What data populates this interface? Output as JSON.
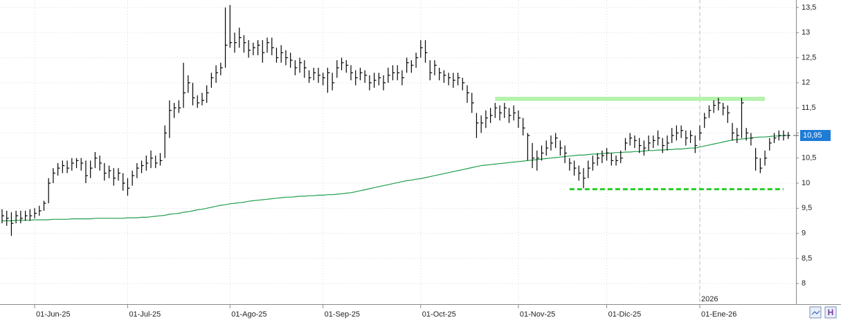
{
  "chart_data": {
    "type": "ohlc",
    "categories": [
      null,
      null,
      null,
      null,
      null,
      null,
      null,
      "01-Jun-25",
      null,
      null,
      null,
      null,
      null,
      null,
      null,
      null,
      null,
      null,
      null,
      null,
      null,
      null,
      null,
      null,
      null,
      null,
      null,
      "01-Jul-25",
      null,
      null,
      null,
      null,
      null,
      null,
      null,
      null,
      null,
      null,
      null,
      null,
      null,
      null,
      null,
      null,
      null,
      null,
      null,
      null,
      null,
      "01-Ago-25",
      null,
      null,
      null,
      null,
      null,
      null,
      null,
      null,
      null,
      null,
      null,
      null,
      null,
      null,
      null,
      null,
      null,
      null,
      null,
      "01-Sep-25",
      null,
      null,
      null,
      null,
      null,
      null,
      null,
      null,
      null,
      null,
      null,
      null,
      null,
      null,
      null,
      null,
      null,
      null,
      null,
      null,
      "01-Oct-25",
      null,
      null,
      null,
      null,
      null,
      null,
      null,
      null,
      null,
      null,
      null,
      null,
      null,
      null,
      null,
      null,
      null,
      null,
      null,
      null,
      "01-Nov-25",
      null,
      null,
      null,
      null,
      null,
      null,
      null,
      null,
      null,
      null,
      null,
      null,
      null,
      null,
      null,
      null,
      null,
      null,
      "01-Dic-25",
      null,
      null,
      null,
      null,
      null,
      null,
      null,
      null,
      null,
      null,
      null,
      null,
      null,
      null,
      null,
      null,
      null,
      null,
      null,
      "01-Ene-26",
      null,
      null,
      null,
      null,
      null,
      null,
      null,
      null,
      null,
      null,
      null,
      null,
      null,
      null,
      null,
      null,
      null,
      null,
      null
    ],
    "high": [
      9.48,
      9.45,
      9.42,
      9.45,
      9.45,
      9.45,
      9.48,
      9.5,
      9.55,
      9.65,
      10.1,
      10.3,
      10.4,
      10.45,
      10.45,
      10.5,
      10.5,
      10.5,
      10.45,
      10.45,
      10.62,
      10.55,
      10.4,
      10.35,
      10.3,
      10.3,
      10.2,
      10.1,
      10.25,
      10.4,
      10.45,
      10.55,
      10.65,
      10.55,
      10.6,
      11.15,
      11.65,
      11.6,
      11.65,
      12.4,
      12.15,
      12.0,
      11.75,
      11.8,
      11.95,
      12.2,
      12.35,
      12.4,
      13.5,
      13.55,
      13.0,
      13.1,
      12.95,
      12.85,
      12.8,
      12.85,
      12.85,
      12.9,
      12.9,
      12.7,
      12.75,
      12.65,
      12.6,
      12.45,
      12.5,
      12.45,
      12.25,
      12.3,
      12.3,
      12.2,
      12.3,
      12.2,
      12.45,
      12.5,
      12.45,
      12.35,
      12.25,
      12.3,
      12.25,
      12.15,
      12.2,
      12.2,
      12.15,
      12.3,
      12.35,
      12.35,
      12.25,
      12.5,
      12.45,
      12.6,
      12.85,
      12.85,
      12.45,
      12.45,
      12.3,
      12.25,
      12.2,
      12.2,
      12.2,
      12.1,
      11.95,
      11.8,
      11.4,
      11.35,
      11.45,
      11.5,
      11.6,
      11.55,
      11.6,
      11.5,
      11.55,
      11.45,
      11.3,
      11.0,
      10.8,
      10.65,
      10.75,
      10.85,
      10.95,
      11.0,
      10.85,
      10.75,
      10.5,
      10.45,
      10.35,
      10.3,
      10.45,
      10.55,
      10.6,
      10.65,
      10.7,
      10.6,
      10.55,
      10.65,
      10.9,
      11.0,
      10.95,
      10.9,
      10.85,
      10.95,
      10.95,
      11.05,
      10.9,
      10.95,
      11.1,
      11.15,
      11.15,
      11.05,
      11.05,
      10.95,
      11.15,
      11.4,
      11.55,
      11.65,
      11.7,
      11.6,
      11.55,
      11.2,
      11.1,
      11.7,
      11.1,
      11.0,
      10.7,
      10.5,
      10.65,
      10.9,
      11.0,
      11.05,
      11.05,
      11.02
    ],
    "low": [
      9.2,
      9.15,
      8.95,
      9.2,
      9.2,
      9.25,
      9.25,
      9.3,
      9.35,
      9.45,
      9.6,
      10.0,
      10.15,
      10.2,
      10.2,
      10.25,
      10.3,
      10.25,
      10.0,
      10.1,
      10.3,
      10.25,
      10.05,
      10.1,
      9.95,
      10.05,
      9.85,
      9.75,
      9.95,
      10.1,
      10.2,
      10.25,
      10.3,
      10.3,
      10.35,
      10.5,
      10.9,
      11.3,
      11.4,
      11.5,
      11.8,
      11.55,
      11.5,
      11.55,
      11.6,
      11.9,
      12.0,
      12.15,
      12.3,
      12.7,
      12.6,
      12.7,
      12.6,
      12.5,
      12.55,
      12.55,
      12.4,
      12.6,
      12.55,
      12.4,
      12.4,
      12.35,
      12.3,
      12.15,
      12.2,
      12.1,
      12.0,
      12.05,
      12.0,
      11.95,
      11.8,
      11.85,
      12.1,
      12.25,
      12.2,
      12.05,
      11.95,
      12.05,
      12.0,
      11.85,
      11.9,
      11.95,
      11.85,
      12.0,
      12.05,
      12.05,
      11.95,
      12.2,
      12.2,
      12.3,
      12.5,
      12.4,
      12.05,
      12.15,
      12.05,
      12.0,
      11.95,
      11.9,
      11.95,
      11.85,
      11.6,
      11.4,
      10.9,
      11.0,
      11.1,
      11.2,
      11.3,
      11.25,
      11.3,
      11.2,
      11.25,
      11.1,
      10.95,
      10.45,
      10.3,
      10.25,
      10.45,
      10.55,
      10.65,
      10.7,
      10.55,
      10.4,
      10.25,
      10.15,
      10.05,
      9.9,
      10.1,
      10.25,
      10.35,
      10.4,
      10.45,
      10.35,
      10.35,
      10.4,
      10.65,
      10.75,
      10.7,
      10.6,
      10.55,
      10.65,
      10.7,
      10.75,
      10.6,
      10.65,
      10.8,
      10.85,
      10.9,
      10.75,
      10.8,
      10.6,
      10.85,
      11.1,
      11.3,
      11.4,
      11.45,
      11.35,
      11.2,
      10.85,
      10.8,
      10.9,
      10.85,
      10.75,
      10.25,
      10.2,
      10.35,
      10.65,
      10.8,
      10.85,
      10.85,
      10.88
    ],
    "close": [
      9.35,
      9.3,
      9.2,
      9.35,
      9.3,
      9.35,
      9.35,
      9.4,
      9.45,
      9.6,
      10.0,
      10.2,
      10.3,
      10.35,
      10.3,
      10.4,
      10.45,
      10.4,
      10.15,
      10.3,
      10.5,
      10.4,
      10.2,
      10.25,
      10.1,
      10.2,
      10.0,
      9.9,
      10.15,
      10.3,
      10.35,
      10.4,
      10.5,
      10.4,
      10.45,
      11.0,
      11.45,
      11.5,
      11.5,
      11.8,
      12.0,
      11.7,
      11.6,
      11.65,
      11.8,
      12.1,
      12.2,
      12.3,
      12.75,
      12.8,
      12.8,
      12.9,
      12.8,
      12.65,
      12.7,
      12.75,
      12.6,
      12.8,
      12.7,
      12.5,
      12.6,
      12.5,
      12.45,
      12.3,
      12.4,
      12.3,
      12.1,
      12.2,
      12.15,
      12.1,
      12.2,
      12.0,
      12.3,
      12.4,
      12.35,
      12.2,
      12.1,
      12.2,
      12.15,
      12.0,
      12.05,
      12.1,
      12.0,
      12.15,
      12.2,
      12.2,
      12.1,
      12.4,
      12.35,
      12.5,
      12.7,
      12.6,
      12.2,
      12.35,
      12.2,
      12.15,
      12.1,
      12.05,
      12.1,
      12.0,
      11.8,
      11.6,
      11.2,
      11.2,
      11.3,
      11.35,
      11.5,
      11.4,
      11.5,
      11.35,
      11.4,
      11.3,
      11.1,
      10.95,
      10.5,
      10.5,
      10.6,
      10.7,
      10.8,
      10.9,
      10.7,
      10.6,
      10.4,
      10.3,
      10.2,
      10.1,
      10.3,
      10.4,
      10.5,
      10.55,
      10.6,
      10.45,
      10.45,
      10.5,
      10.8,
      10.9,
      10.85,
      10.75,
      10.7,
      10.8,
      10.85,
      10.9,
      10.75,
      10.8,
      10.95,
      11.0,
      11.05,
      10.9,
      10.95,
      10.75,
      11.0,
      11.3,
      11.45,
      11.55,
      11.6,
      11.5,
      11.4,
      11.0,
      10.95,
      11.6,
      11.0,
      10.9,
      10.5,
      10.3,
      10.5,
      10.8,
      10.9,
      10.95,
      10.95,
      10.95
    ],
    "color": "#000000",
    "moving_average": {
      "color": "#1f9e4a",
      "values": [
        9.25,
        9.25,
        9.25,
        9.26,
        9.26,
        9.26,
        9.26,
        9.27,
        9.27,
        9.27,
        9.27,
        9.28,
        9.28,
        9.28,
        9.28,
        9.29,
        9.29,
        9.29,
        9.29,
        9.29,
        9.3,
        9.3,
        9.3,
        9.3,
        9.3,
        9.3,
        9.3,
        9.31,
        9.31,
        9.31,
        9.32,
        9.32,
        9.33,
        9.34,
        9.35,
        9.36,
        9.38,
        9.39,
        9.4,
        9.42,
        9.43,
        9.45,
        9.47,
        9.48,
        9.5,
        9.52,
        9.54,
        9.56,
        9.57,
        9.59,
        9.6,
        9.61,
        9.62,
        9.64,
        9.65,
        9.66,
        9.67,
        9.68,
        9.69,
        9.7,
        9.71,
        9.72,
        9.72,
        9.73,
        9.74,
        9.74,
        9.75,
        9.75,
        9.76,
        9.76,
        9.77,
        9.77,
        9.78,
        9.79,
        9.8,
        9.81,
        9.83,
        9.85,
        9.87,
        9.89,
        9.91,
        9.93,
        9.95,
        9.97,
        9.99,
        10.01,
        10.03,
        10.05,
        10.06,
        10.08,
        10.09,
        10.11,
        10.13,
        10.15,
        10.17,
        10.19,
        10.21,
        10.23,
        10.25,
        10.27,
        10.29,
        10.31,
        10.33,
        10.35,
        10.36,
        10.37,
        10.38,
        10.39,
        10.4,
        10.41,
        10.42,
        10.43,
        10.44,
        10.45,
        10.46,
        10.47,
        10.48,
        10.49,
        10.5,
        10.51,
        10.52,
        10.53,
        10.54,
        10.55,
        10.56,
        10.56,
        10.57,
        10.58,
        10.58,
        10.59,
        10.6,
        10.6,
        10.61,
        10.61,
        10.62,
        10.62,
        10.63,
        10.63,
        10.64,
        10.65,
        10.65,
        10.66,
        10.66,
        10.67,
        10.67,
        10.68,
        10.68,
        10.69,
        10.7,
        10.7,
        10.72,
        10.74,
        10.76,
        10.78,
        10.8,
        10.82,
        10.84,
        10.86,
        10.87,
        10.88,
        10.89,
        10.9,
        10.91,
        10.92,
        10.92,
        10.93,
        10.94,
        10.94,
        10.95,
        10.95
      ]
    },
    "hlines": [
      {
        "value": 11.68,
        "start": 106,
        "end": 164,
        "color": "#b6f2ae",
        "dashed": false
      },
      {
        "value": 9.88,
        "start": 122,
        "end": 168,
        "color": "#22cc22",
        "dashed": true
      }
    ],
    "last_price": {
      "value": 10.95,
      "label": "10,95",
      "color": "#1e7bd6"
    },
    "year_marker": {
      "index": 150,
      "label": "2026"
    },
    "ylim": [
      7.59,
      13.65
    ],
    "yticks": [
      {
        "value": 8,
        "label": "8"
      },
      {
        "value": 8.5,
        "label": "8,5"
      },
      {
        "value": 9,
        "label": "9"
      },
      {
        "value": 9.5,
        "label": "9,5"
      },
      {
        "value": 10,
        "label": "10"
      },
      {
        "value": 10.5,
        "label": "10,5"
      },
      {
        "value": 11,
        "label": "11"
      },
      {
        "value": 11.5,
        "label": "11,5"
      },
      {
        "value": 12,
        "label": "12"
      },
      {
        "value": 12.5,
        "label": "12,5"
      },
      {
        "value": 13,
        "label": "13"
      },
      {
        "value": 13.5,
        "label": "13,5"
      }
    ],
    "grid": true
  }
}
